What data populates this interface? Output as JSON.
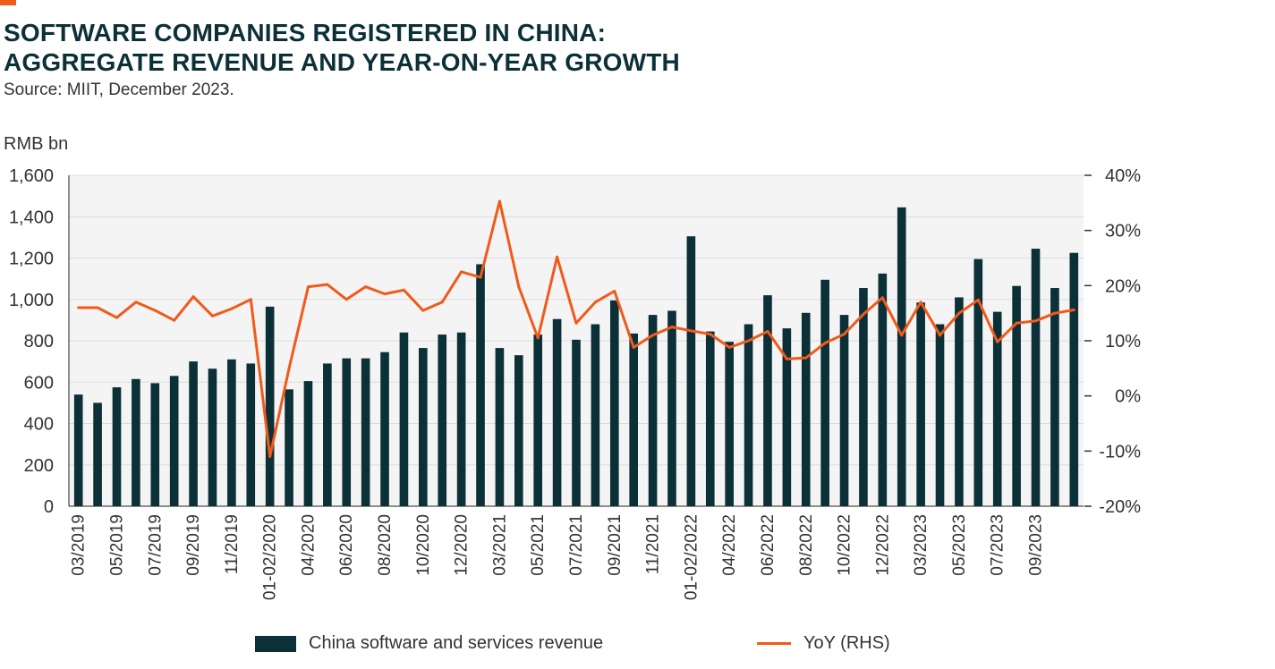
{
  "header": {
    "title_line1": "SOFTWARE COMPANIES REGISTERED IN CHINA:",
    "title_line2": "AGGREGATE REVENUE AND YEAR-ON-YEAR GROWTH",
    "source": "Source: MIIT, December 2023.",
    "unit_label": "RMB bn"
  },
  "colors": {
    "bar": "#0c3038",
    "line": "#f05a1a",
    "plot_bg": "#f4f4f4",
    "grid": "#dcdcdc",
    "accent": "#f05a1a"
  },
  "legend": {
    "bar_label": "China software and services revenue",
    "line_label": "YoY (RHS)"
  },
  "chart_data": {
    "type": "bar",
    "title": "SOFTWARE COMPANIES REGISTERED IN CHINA: AGGREGATE REVENUE AND YEAR-ON-YEAR GROWTH",
    "ylabel": "RMB bn",
    "ylim": [
      0,
      1600
    ],
    "y2lim": [
      -20,
      40
    ],
    "yticks": [
      "0",
      "200",
      "400",
      "600",
      "800",
      "1,000",
      "1,200",
      "1,400",
      "1,600"
    ],
    "y2ticks": [
      "-20%",
      "-10%",
      "0%",
      "10%",
      "20%",
      "30%",
      "40%"
    ],
    "grid": true,
    "legend_position": "bottom",
    "x": [
      "03/2019",
      "04/2019",
      "05/2019",
      "06/2019",
      "07/2019",
      "08/2019",
      "09/2019",
      "10/2019",
      "11/2019",
      "12/2019",
      "01-02/2020",
      "03/2020",
      "04/2020",
      "05/2020",
      "06/2020",
      "07/2020",
      "08/2020",
      "09/2020",
      "10/2020",
      "11/2020",
      "12/2020",
      "01-02/2021",
      "03/2021",
      "04/2021",
      "05/2021",
      "06/2021",
      "07/2021",
      "08/2021",
      "09/2021",
      "10/2021",
      "11/2021",
      "12/2021",
      "01-02/2022",
      "03/2022",
      "04/2022",
      "05/2022",
      "06/2022",
      "07/2022",
      "08/2022",
      "09/2022",
      "10/2022",
      "11/2022",
      "12/2022",
      "01-02/2023",
      "03/2023",
      "04/2023",
      "05/2023",
      "06/2023",
      "07/2023",
      "08/2023",
      "09/2023",
      "10/2023",
      "11/2023"
    ],
    "x_tick_labels": [
      "03/2019",
      "05/2019",
      "07/2019",
      "09/2019",
      "11/2019",
      "01-02/2020",
      "04/2020",
      "06/2020",
      "08/2020",
      "10/2020",
      "12/2020",
      "03/2021",
      "05/2021",
      "07/2021",
      "09/2021",
      "11/2021",
      "01-02/2022",
      "04/2022",
      "06/2022",
      "08/2022",
      "10/2022",
      "12/2022",
      "03/2023",
      "05/2023",
      "07/2023",
      "09/2023"
    ],
    "series": [
      {
        "name": "China software and services revenue",
        "axis": "left",
        "type": "bar",
        "values": [
          540,
          500,
          575,
          615,
          595,
          630,
          700,
          665,
          710,
          690,
          965,
          565,
          605,
          690,
          715,
          715,
          745,
          840,
          765,
          830,
          840,
          1170,
          765,
          730,
          830,
          905,
          805,
          880,
          995,
          835,
          925,
          945,
          1305,
          845,
          795,
          880,
          1020,
          860,
          935,
          1095,
          925,
          1055,
          1125,
          1445,
          985,
          880,
          1010,
          1195,
          940,
          1065,
          1245,
          1055,
          1225
        ]
      },
      {
        "name": "YoY (RHS)",
        "axis": "right",
        "type": "line",
        "values": [
          16,
          16,
          14.2,
          17,
          15.5,
          13.7,
          18,
          14.5,
          15.8,
          17.5,
          -11,
          5,
          19.8,
          20.2,
          17.5,
          19.8,
          18.5,
          19.2,
          15.5,
          17,
          22.5,
          21.5,
          35.3,
          19.8,
          10.5,
          25.2,
          13.2,
          17,
          19,
          8.8,
          11,
          12.5,
          11.8,
          11.2,
          8.8,
          10,
          11.7,
          6.7,
          6.9,
          9.6,
          11.2,
          14.8,
          17.8,
          11,
          17,
          11,
          15,
          17.4,
          9.8,
          13.2,
          13.6,
          15,
          15.6
        ]
      }
    ]
  }
}
